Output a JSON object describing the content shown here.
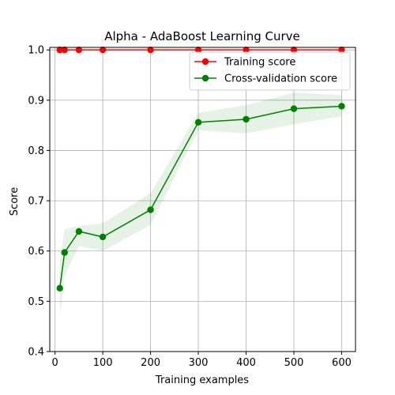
{
  "chart_data": {
    "type": "line",
    "title": "Alpha - AdaBoost Learning Curve",
    "xlabel": "Training examples",
    "ylabel": "Score",
    "xlim": [
      -11,
      629
    ],
    "ylim": [
      0.4,
      1.005
    ],
    "xticks": [
      0,
      100,
      200,
      300,
      400,
      500,
      600
    ],
    "yticks": [
      0.4,
      0.5,
      0.6,
      0.7,
      0.8,
      0.9,
      1.0
    ],
    "ytick_labels": [
      "0.4",
      "0.5",
      "0.6",
      "0.7",
      "0.8",
      "0.9",
      "1.0"
    ],
    "grid": true,
    "legend_position": "top-right",
    "x": [
      10,
      20,
      50,
      100,
      200,
      300,
      400,
      500,
      600
    ],
    "series": [
      {
        "name": "Training score",
        "color": "#ff0000",
        "values": [
          1.0,
          1.0,
          1.0,
          1.0,
          1.0,
          1.0,
          1.0,
          1.0,
          1.0
        ],
        "band_lower": [
          1.0,
          1.0,
          1.0,
          1.0,
          1.0,
          1.0,
          1.0,
          1.0,
          1.0
        ],
        "band_upper": [
          1.0,
          1.0,
          1.0,
          1.0,
          1.0,
          1.0,
          1.0,
          1.0,
          1.0
        ]
      },
      {
        "name": "Cross-validation score",
        "color": "#008000",
        "values": [
          0.526,
          0.597,
          0.639,
          0.628,
          0.682,
          0.856,
          0.862,
          0.883,
          0.888
        ],
        "band_lower": [
          0.47,
          0.55,
          0.61,
          0.6,
          0.652,
          0.84,
          0.834,
          0.852,
          0.868
        ],
        "band_upper": [
          0.58,
          0.643,
          0.65,
          0.655,
          0.715,
          0.875,
          0.89,
          0.915,
          0.91
        ]
      }
    ]
  }
}
